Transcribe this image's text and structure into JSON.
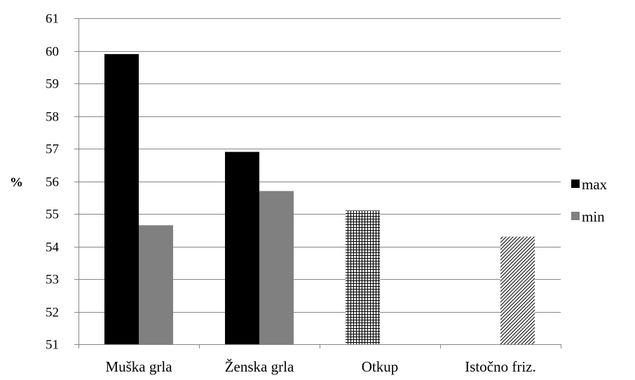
{
  "chart_data": {
    "type": "bar",
    "ylabel": "%",
    "xlabel": "",
    "categories": [
      "Muška grla",
      "Ženska grla",
      "Otkup",
      "Istočno friz."
    ],
    "series": [
      {
        "name": "max",
        "values": [
          59.9,
          56.9,
          null,
          null
        ],
        "color": "#000000"
      },
      {
        "name": "min",
        "values": [
          54.65,
          55.7,
          null,
          null
        ],
        "color": "#808080"
      },
      {
        "values": [
          null,
          null,
          55.1,
          null
        ],
        "pattern": "grid"
      },
      {
        "values": [
          null,
          null,
          null,
          54.3
        ],
        "pattern": "diagonal"
      }
    ],
    "ylim": [
      51,
      61
    ],
    "yticks": [
      51,
      52,
      53,
      54,
      55,
      56,
      57,
      58,
      59,
      60,
      61
    ],
    "grid": true,
    "legend_position": "right"
  }
}
